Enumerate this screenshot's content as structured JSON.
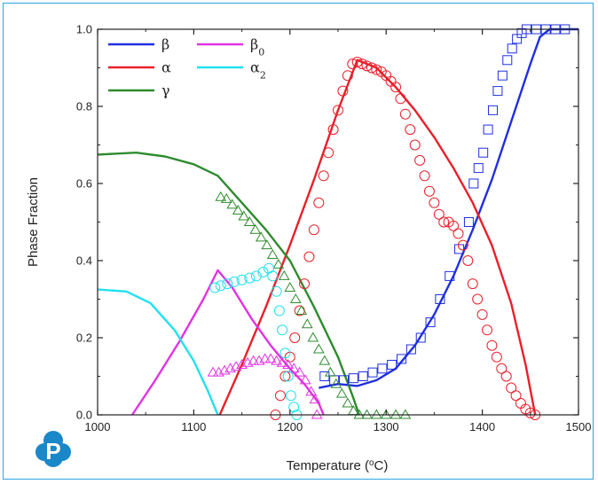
{
  "colors": {
    "beta": "#1f2fe0",
    "alpha": "#e8202a",
    "gamma": "#2e8b2e",
    "beta0": "#e033e0",
    "alpha2": "#22e0ee",
    "frame": "#2aa8e0",
    "logo": "#1a87c9"
  },
  "logo": {
    "letter": "P",
    "icon": "pandat-logo-icon"
  },
  "chart_data": {
    "type": "line",
    "xlabel": "Temperature (",
    "xlabel_sup": "o",
    "xlabel_unit": "C)",
    "ylabel": "Phase Fraction",
    "xlim": [
      1000,
      1500
    ],
    "ylim": [
      0,
      1.0
    ],
    "xticks": [
      "1000",
      "1100",
      "1200",
      "1300",
      "1400",
      "1500"
    ],
    "yticks": [
      "0.0",
      "0.2",
      "0.4",
      "0.6",
      "0.8",
      "1.0"
    ],
    "grid": false,
    "legend_placement": "top-left",
    "legend": [
      {
        "key": "beta",
        "label": "β",
        "sub": ""
      },
      {
        "key": "beta0",
        "label": "β",
        "sub": "0"
      },
      {
        "key": "alpha",
        "label": "α",
        "sub": ""
      },
      {
        "key": "alpha2",
        "label": "α",
        "sub": "2"
      },
      {
        "key": "gamma",
        "label": "γ",
        "sub": ""
      }
    ],
    "series": [
      {
        "key": "beta",
        "kind": "line",
        "points": [
          [
            1230,
            0.07
          ],
          [
            1250,
            0.08
          ],
          [
            1270,
            0.075
          ],
          [
            1290,
            0.09
          ],
          [
            1310,
            0.12
          ],
          [
            1330,
            0.18
          ],
          [
            1350,
            0.26
          ],
          [
            1370,
            0.36
          ],
          [
            1390,
            0.48
          ],
          [
            1410,
            0.61
          ],
          [
            1430,
            0.76
          ],
          [
            1450,
            0.91
          ],
          [
            1460,
            0.98
          ],
          [
            1470,
            1.0
          ],
          [
            1500,
            1.0
          ]
        ]
      },
      {
        "key": "alpha",
        "kind": "line",
        "points": [
          [
            1127,
            0.0
          ],
          [
            1150,
            0.13
          ],
          [
            1175,
            0.28
          ],
          [
            1200,
            0.44
          ],
          [
            1225,
            0.61
          ],
          [
            1250,
            0.79
          ],
          [
            1270,
            0.92
          ],
          [
            1290,
            0.9
          ],
          [
            1310,
            0.85
          ],
          [
            1330,
            0.79
          ],
          [
            1350,
            0.72
          ],
          [
            1370,
            0.64
          ],
          [
            1390,
            0.55
          ],
          [
            1410,
            0.44
          ],
          [
            1430,
            0.29
          ],
          [
            1445,
            0.13
          ],
          [
            1455,
            0.0
          ]
        ]
      },
      {
        "key": "gamma",
        "kind": "line",
        "points": [
          [
            1000,
            0.675
          ],
          [
            1040,
            0.68
          ],
          [
            1070,
            0.67
          ],
          [
            1100,
            0.65
          ],
          [
            1125,
            0.62
          ],
          [
            1150,
            0.55
          ],
          [
            1175,
            0.48
          ],
          [
            1200,
            0.4
          ],
          [
            1225,
            0.28
          ],
          [
            1250,
            0.15
          ],
          [
            1265,
            0.05
          ],
          [
            1272,
            0.0
          ]
        ]
      },
      {
        "key": "beta0",
        "kind": "line",
        "points": [
          [
            1036,
            0.0
          ],
          [
            1060,
            0.09
          ],
          [
            1085,
            0.19
          ],
          [
            1110,
            0.3
          ],
          [
            1125,
            0.375
          ],
          [
            1140,
            0.33
          ],
          [
            1160,
            0.25
          ],
          [
            1180,
            0.18
          ],
          [
            1200,
            0.12
          ],
          [
            1215,
            0.08
          ],
          [
            1230,
            0.03
          ],
          [
            1235,
            0.0
          ]
        ]
      },
      {
        "key": "alpha2",
        "kind": "line",
        "points": [
          [
            1000,
            0.325
          ],
          [
            1030,
            0.32
          ],
          [
            1055,
            0.29
          ],
          [
            1080,
            0.22
          ],
          [
            1100,
            0.14
          ],
          [
            1115,
            0.06
          ],
          [
            1125,
            0.0
          ]
        ]
      },
      {
        "key": "beta",
        "kind": "squares",
        "points": [
          [
            1236,
            0.1
          ],
          [
            1246,
            0.09
          ],
          [
            1256,
            0.09
          ],
          [
            1266,
            0.095
          ],
          [
            1276,
            0.1
          ],
          [
            1286,
            0.11
          ],
          [
            1296,
            0.12
          ],
          [
            1306,
            0.13
          ],
          [
            1316,
            0.145
          ],
          [
            1326,
            0.17
          ],
          [
            1336,
            0.2
          ],
          [
            1346,
            0.24
          ],
          [
            1356,
            0.3
          ],
          [
            1366,
            0.36
          ],
          [
            1376,
            0.43
          ],
          [
            1386,
            0.5
          ],
          [
            1391,
            0.6
          ],
          [
            1396,
            0.64
          ],
          [
            1401,
            0.68
          ],
          [
            1406,
            0.74
          ],
          [
            1411,
            0.79
          ],
          [
            1416,
            0.84
          ],
          [
            1421,
            0.88
          ],
          [
            1426,
            0.92
          ],
          [
            1431,
            0.95
          ],
          [
            1436,
            0.975
          ],
          [
            1441,
            0.99
          ],
          [
            1446,
            1.0
          ],
          [
            1456,
            1.0
          ],
          [
            1466,
            1.0
          ],
          [
            1476,
            1.0
          ],
          [
            1486,
            1.0
          ]
        ]
      },
      {
        "key": "alpha",
        "kind": "circles",
        "points": [
          [
            1185,
            0.0
          ],
          [
            1190,
            0.05
          ],
          [
            1195,
            0.1
          ],
          [
            1200,
            0.15
          ],
          [
            1205,
            0.2
          ],
          [
            1210,
            0.27
          ],
          [
            1215,
            0.34
          ],
          [
            1220,
            0.41
          ],
          [
            1225,
            0.48
          ],
          [
            1230,
            0.55
          ],
          [
            1235,
            0.62
          ],
          [
            1240,
            0.68
          ],
          [
            1245,
            0.74
          ],
          [
            1250,
            0.79
          ],
          [
            1255,
            0.84
          ],
          [
            1260,
            0.88
          ],
          [
            1265,
            0.91
          ],
          [
            1270,
            0.915
          ],
          [
            1275,
            0.91
          ],
          [
            1280,
            0.905
          ],
          [
            1285,
            0.9
          ],
          [
            1290,
            0.895
          ],
          [
            1295,
            0.89
          ],
          [
            1300,
            0.88
          ],
          [
            1305,
            0.865
          ],
          [
            1310,
            0.85
          ],
          [
            1315,
            0.82
          ],
          [
            1320,
            0.78
          ],
          [
            1325,
            0.74
          ],
          [
            1330,
            0.7
          ],
          [
            1335,
            0.66
          ],
          [
            1340,
            0.62
          ],
          [
            1345,
            0.58
          ],
          [
            1350,
            0.55
          ],
          [
            1355,
            0.52
          ],
          [
            1360,
            0.5
          ],
          [
            1365,
            0.5
          ],
          [
            1370,
            0.49
          ],
          [
            1375,
            0.47
          ],
          [
            1380,
            0.44
          ],
          [
            1385,
            0.4
          ],
          [
            1390,
            0.34
          ],
          [
            1395,
            0.3
          ],
          [
            1400,
            0.26
          ],
          [
            1405,
            0.22
          ],
          [
            1410,
            0.18
          ],
          [
            1415,
            0.15
          ],
          [
            1420,
            0.12
          ],
          [
            1425,
            0.1
          ],
          [
            1430,
            0.07
          ],
          [
            1435,
            0.05
          ],
          [
            1440,
            0.03
          ],
          [
            1445,
            0.015
          ],
          [
            1450,
            0.005
          ],
          [
            1455,
            0.0
          ]
        ]
      },
      {
        "key": "gamma",
        "kind": "triangles",
        "points": [
          [
            1128,
            0.565
          ],
          [
            1134,
            0.56
          ],
          [
            1140,
            0.545
          ],
          [
            1146,
            0.53
          ],
          [
            1152,
            0.515
          ],
          [
            1158,
            0.5
          ],
          [
            1164,
            0.48
          ],
          [
            1170,
            0.46
          ],
          [
            1176,
            0.44
          ],
          [
            1182,
            0.415
          ],
          [
            1188,
            0.39
          ],
          [
            1194,
            0.36
          ],
          [
            1200,
            0.33
          ],
          [
            1206,
            0.3
          ],
          [
            1212,
            0.27
          ],
          [
            1218,
            0.235
          ],
          [
            1224,
            0.2
          ],
          [
            1230,
            0.17
          ],
          [
            1236,
            0.14
          ],
          [
            1242,
            0.11
          ],
          [
            1248,
            0.08
          ],
          [
            1254,
            0.055
          ],
          [
            1260,
            0.03
          ],
          [
            1266,
            0.01
          ],
          [
            1272,
            0.0
          ],
          [
            1280,
            0.0
          ],
          [
            1290,
            0.0
          ],
          [
            1300,
            0.0
          ],
          [
            1310,
            0.0
          ],
          [
            1320,
            0.0
          ]
        ]
      },
      {
        "key": "beta0",
        "kind": "triangles",
        "points": [
          [
            1120,
            0.11
          ],
          [
            1126,
            0.11
          ],
          [
            1132,
            0.115
          ],
          [
            1138,
            0.12
          ],
          [
            1144,
            0.125
          ],
          [
            1150,
            0.13
          ],
          [
            1156,
            0.135
          ],
          [
            1162,
            0.14
          ],
          [
            1168,
            0.14
          ],
          [
            1174,
            0.145
          ],
          [
            1180,
            0.145
          ],
          [
            1186,
            0.14
          ],
          [
            1192,
            0.135
          ],
          [
            1198,
            0.13
          ],
          [
            1204,
            0.12
          ],
          [
            1210,
            0.11
          ],
          [
            1216,
            0.09
          ],
          [
            1222,
            0.06
          ],
          [
            1226,
            0.04
          ],
          [
            1228,
            0.0
          ]
        ]
      },
      {
        "key": "alpha2",
        "kind": "circles",
        "points": [
          [
            1122,
            0.33
          ],
          [
            1128,
            0.335
          ],
          [
            1135,
            0.34
          ],
          [
            1142,
            0.345
          ],
          [
            1150,
            0.35
          ],
          [
            1158,
            0.355
          ],
          [
            1165,
            0.36
          ],
          [
            1172,
            0.37
          ],
          [
            1178,
            0.38
          ],
          [
            1182,
            0.36
          ],
          [
            1186,
            0.32
          ],
          [
            1189,
            0.27
          ],
          [
            1192,
            0.22
          ],
          [
            1195,
            0.16
          ],
          [
            1198,
            0.1
          ],
          [
            1201,
            0.05
          ],
          [
            1204,
            0.02
          ],
          [
            1207,
            0.0
          ]
        ]
      }
    ]
  }
}
